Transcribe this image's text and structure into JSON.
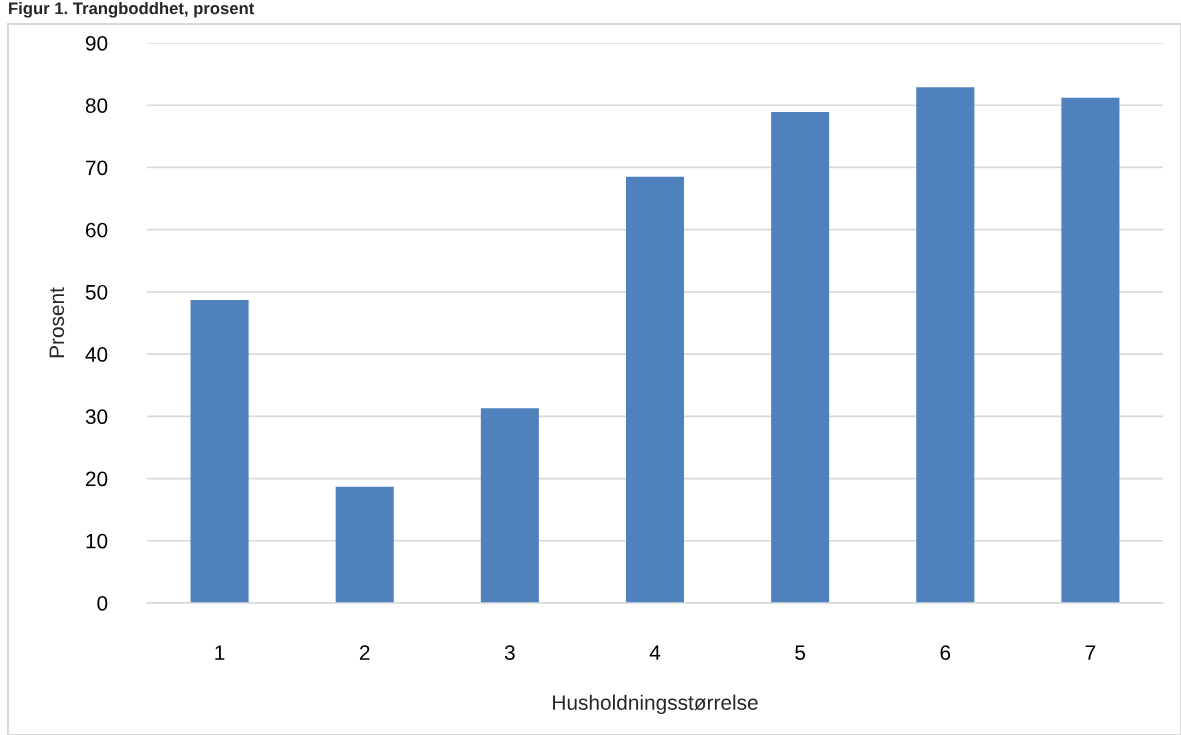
{
  "chart_data": {
    "type": "bar",
    "title": "Figur 1. Trangboddhet, prosent",
    "xlabel": "Husholdningsstørrelse",
    "ylabel": "Prosent",
    "categories": [
      "1",
      "2",
      "3",
      "4",
      "5",
      "6",
      "7"
    ],
    "values": [
      48.7,
      18.7,
      31.3,
      68.5,
      78.9,
      82.9,
      81.2
    ],
    "color": "#4f81bd",
    "ylim": [
      0,
      90
    ],
    "yticks": [
      0,
      10,
      20,
      30,
      40,
      50,
      60,
      70,
      80,
      90
    ],
    "grid": "y"
  }
}
